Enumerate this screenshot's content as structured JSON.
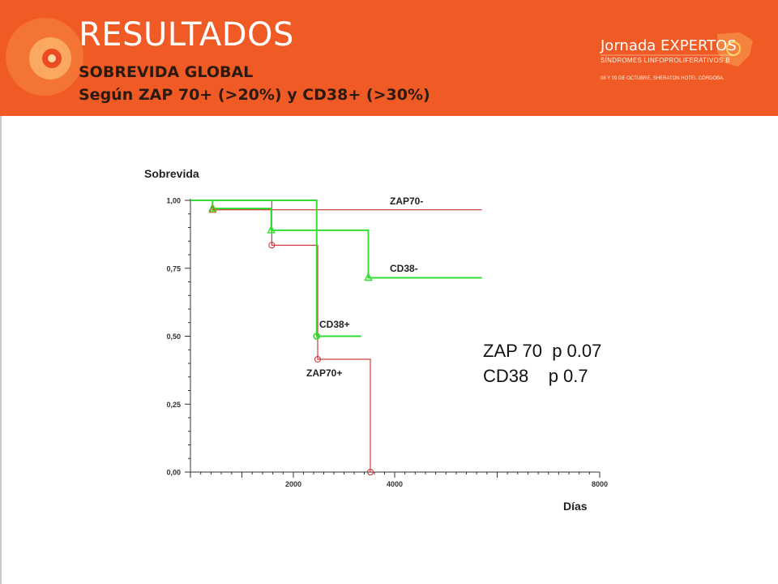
{
  "header": {
    "title": "RESULTADOS",
    "subtitle1": "SOBREVIDA GLOBAL",
    "subtitle2": "Según ZAP 70+ (>20%) y CD38+ (>30%)"
  },
  "logo": {
    "brand_a": "Jornada ",
    "brand_b": "EXPERTOS",
    "tagline": "SÍNDROMES LINFOPROLIFERATIVOS B",
    "date": "08 Y 09 DE OCTUBRE, SHERATON HOTEL CÓRDOBA."
  },
  "stats": {
    "line1": "ZAP 70  p 0.07",
    "line2": "CD38    p 0.7"
  },
  "chart_data": {
    "type": "line",
    "title": "",
    "ylabel": "Sobrevida",
    "xlabel": "Días",
    "ylim": [
      0,
      1
    ],
    "y_ticks": [
      {
        "value": 0.0,
        "label": "0,00"
      },
      {
        "value": 0.25,
        "label": "0,25"
      },
      {
        "value": 0.5,
        "label": "0,50"
      },
      {
        "value": 0.75,
        "label": "0,75"
      },
      {
        "value": 1.0,
        "label": "1,00"
      }
    ],
    "x_ticks": [
      {
        "value": 2000,
        "label": "2000"
      },
      {
        "value": 4000,
        "label": "4000"
      },
      {
        "value": 8000,
        "label": "8000"
      }
    ],
    "xlim": [
      0,
      8000
    ],
    "series": [
      {
        "name": "ZAP70-",
        "color": "#cc2a2a",
        "steps": [
          [
            0,
            1.0
          ],
          [
            430,
            0.965
          ],
          [
            5700,
            0.965
          ]
        ],
        "censored": []
      },
      {
        "name": "ZAP70+",
        "color": "#cc2a2a",
        "steps": [
          [
            0,
            1.0
          ],
          [
            1580,
            0.835
          ],
          [
            2480,
            0.415
          ],
          [
            3520,
            0.0
          ]
        ],
        "censored": [
          [
            1580,
            0.835
          ],
          [
            2480,
            0.415
          ],
          [
            3520,
            0.0
          ]
        ]
      },
      {
        "name": "CD38-",
        "color": "#33dd33",
        "steps": [
          [
            0,
            1.0
          ],
          [
            430,
            0.97
          ],
          [
            1570,
            0.89
          ],
          [
            3480,
            0.715
          ],
          [
            5700,
            0.715
          ]
        ],
        "censored": [
          [
            430,
            0.97
          ],
          [
            1570,
            0.89
          ],
          [
            3480,
            0.715
          ]
        ]
      },
      {
        "name": "CD38+",
        "color": "#33dd33",
        "steps": [
          [
            0,
            1.0
          ],
          [
            2460,
            0.5
          ],
          [
            3340,
            0.5
          ]
        ],
        "censored": [
          [
            2460,
            0.5
          ]
        ]
      }
    ]
  }
}
